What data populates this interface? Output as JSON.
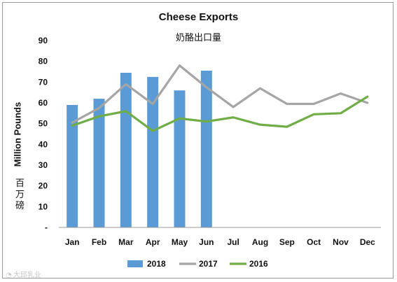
{
  "chart_data": {
    "type": "bar",
    "title": "Cheese Exports",
    "subtitle": "奶酪出口量",
    "ylabel": "Million Pounds",
    "ylabel_cn": "百万磅",
    "xlabel": "",
    "ylim": [
      0,
      90
    ],
    "y_ticks": [
      "-",
      "10",
      "20",
      "30",
      "40",
      "50",
      "60",
      "70",
      "80",
      "90"
    ],
    "categories": [
      "Jan",
      "Feb",
      "Mar",
      "Apr",
      "May",
      "Jun",
      "Jul",
      "Aug",
      "Sep",
      "Oct",
      "Nov",
      "Dec"
    ],
    "grid": false,
    "legend_position": "bottom",
    "series": [
      {
        "name": "2018",
        "kind": "bar",
        "color": "#5b9bd5",
        "values": [
          59,
          62,
          74.5,
          72.5,
          66,
          75.5,
          null,
          null,
          null,
          null,
          null,
          null
        ]
      },
      {
        "name": "2017",
        "kind": "line",
        "color": "#a5a5a5",
        "values": [
          50.5,
          57.5,
          69,
          59.5,
          78,
          67.5,
          58,
          67,
          59.5,
          59.5,
          64.5,
          60
        ]
      },
      {
        "name": "2016",
        "kind": "line",
        "color": "#70ad47",
        "values": [
          49,
          53.5,
          56,
          46.5,
          52.5,
          51,
          53,
          49.5,
          48.5,
          54.5,
          55,
          63
        ]
      }
    ]
  },
  "watermark": {
    "text": "大邱乳业",
    "icon": "weibo-icon"
  }
}
